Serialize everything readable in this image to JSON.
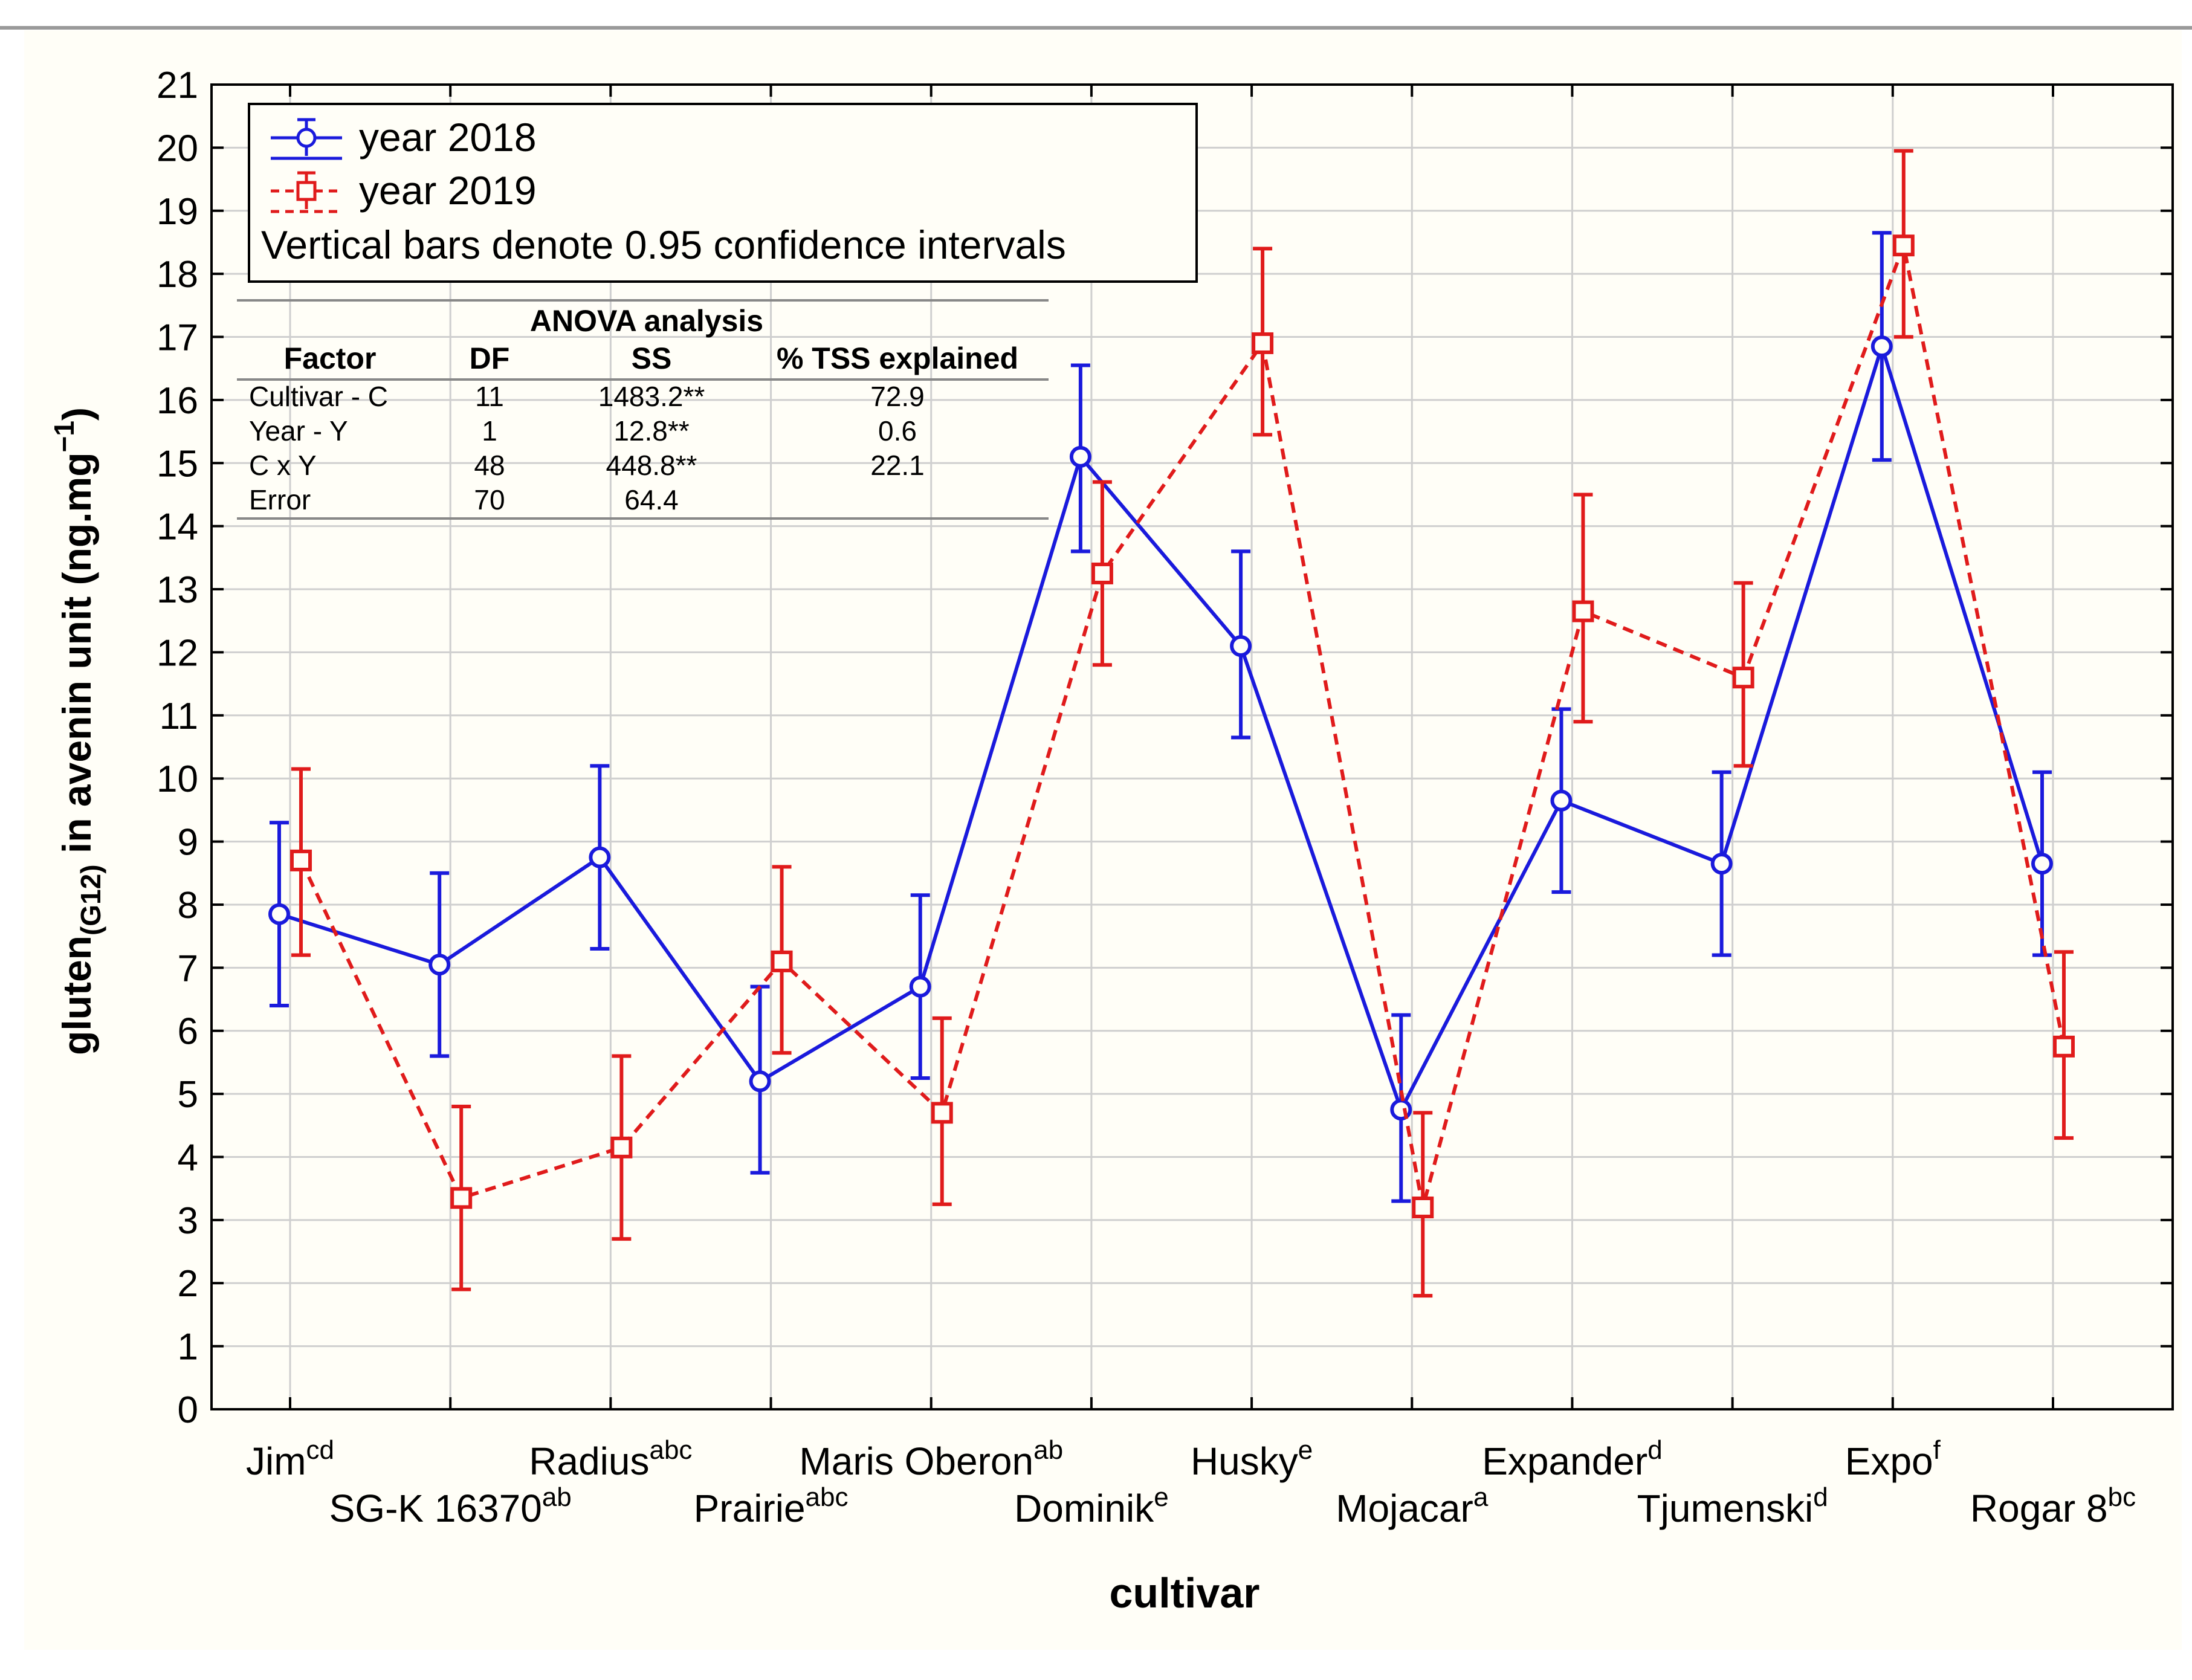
{
  "chart_data": {
    "type": "line",
    "xlabel": "cultivar",
    "ylabel_main": "gluten",
    "ylabel_sub": "(G12)",
    "ylabel_rest": " in avenin unit (ng.mg",
    "ylabel_sup": "−1",
    "ylabel_end": ")",
    "ylim": [
      0,
      21
    ],
    "yticks": [
      "0",
      "1",
      "2",
      "3",
      "4",
      "5",
      "6",
      "7",
      "8",
      "9",
      "10",
      "11",
      "12",
      "13",
      "14",
      "15",
      "16",
      "17",
      "18",
      "19",
      "20",
      "21"
    ],
    "categories": [
      {
        "name": "Jim",
        "sup": "cd"
      },
      {
        "name": "SG-K 16370",
        "sup": "ab"
      },
      {
        "name": "Radius",
        "sup": "abc"
      },
      {
        "name": "Prairie",
        "sup": "abc"
      },
      {
        "name": "Maris Oberon",
        "sup": "ab"
      },
      {
        "name": "Dominik",
        "sup": "e"
      },
      {
        "name": "Husky",
        "sup": "e"
      },
      {
        "name": "Mojacar",
        "sup": "a"
      },
      {
        "name": "Expander",
        "sup": "d"
      },
      {
        "name": "Tjumenski",
        "sup": "d"
      },
      {
        "name": "Expo",
        "sup": "f"
      },
      {
        "name": "Rogar 8",
        "sup": "bc"
      }
    ],
    "series": [
      {
        "name": "year 2018",
        "color": "#1a1adc",
        "marker": "circle",
        "dash": "solid",
        "values": [
          7.85,
          7.05,
          8.75,
          5.2,
          6.7,
          15.1,
          12.1,
          4.75,
          9.65,
          8.65,
          16.85,
          8.65
        ],
        "lower": [
          6.4,
          5.6,
          7.3,
          3.75,
          5.25,
          13.6,
          10.65,
          3.3,
          8.2,
          7.2,
          15.05,
          7.2
        ],
        "upper": [
          9.3,
          8.5,
          10.2,
          6.7,
          8.15,
          16.55,
          13.6,
          6.25,
          11.1,
          10.1,
          18.65,
          10.1
        ]
      },
      {
        "name": "year 2019",
        "color": "#e01b1b",
        "marker": "square",
        "dash": "dashed",
        "values": [
          8.7,
          3.35,
          4.15,
          7.1,
          4.7,
          13.25,
          16.9,
          3.2,
          12.65,
          11.6,
          18.45,
          5.75
        ],
        "lower": [
          7.2,
          1.9,
          2.7,
          5.65,
          3.25,
          11.8,
          15.45,
          1.8,
          10.9,
          10.2,
          17.0,
          4.3
        ],
        "upper": [
          10.15,
          4.8,
          5.6,
          8.6,
          6.2,
          14.7,
          18.4,
          4.7,
          14.5,
          13.1,
          19.95,
          7.25
        ]
      }
    ],
    "legend": {
      "position": "top-left",
      "entries": [
        "year 2018",
        "year 2019"
      ],
      "note": "Vertical bars denote 0.95 confidence intervals"
    },
    "anova_table": {
      "title": "ANOVA analysis",
      "headers": [
        "Factor",
        "DF",
        "SS",
        "% TSS explained"
      ],
      "rows": [
        [
          "Cultivar - C",
          "11",
          "1483.2**",
          "72.9"
        ],
        [
          "Year - Y",
          "1",
          "12.8**",
          "0.6"
        ],
        [
          "C x Y",
          "48",
          "448.8**",
          "22.1"
        ],
        [
          "Error",
          "70",
          "64.4",
          ""
        ]
      ]
    }
  }
}
